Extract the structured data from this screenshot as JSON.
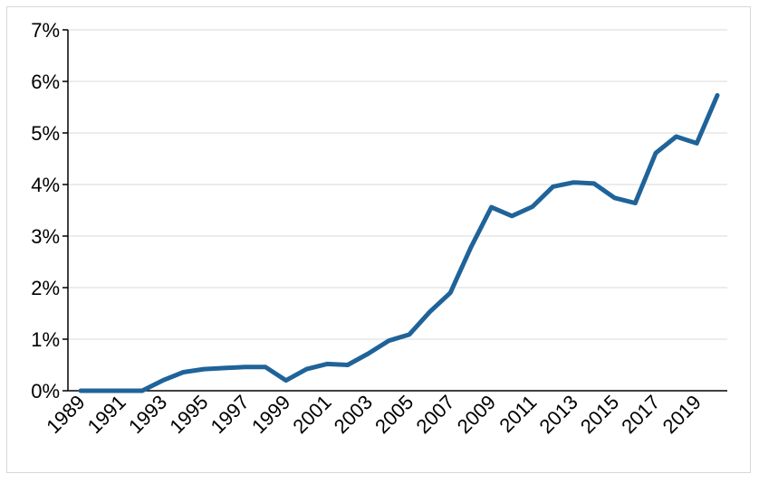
{
  "chart_data": {
    "type": "line",
    "title": "",
    "xlabel": "",
    "ylabel": "",
    "ylim": [
      0,
      7
    ],
    "grid": true,
    "legend": "none",
    "y_ticks": [
      "0%",
      "1%",
      "2%",
      "3%",
      "4%",
      "5%",
      "6%",
      "7%"
    ],
    "x_tick_labels": [
      "1989",
      "1991",
      "1993",
      "1995",
      "1997",
      "1999",
      "2001",
      "2003",
      "2005",
      "2007",
      "2009",
      "2011",
      "2013",
      "2015",
      "2017",
      "2019"
    ],
    "x": [
      1989,
      1990,
      1991,
      1992,
      1993,
      1994,
      1995,
      1996,
      1997,
      1998,
      1999,
      2000,
      2001,
      2002,
      2003,
      2004,
      2005,
      2006,
      2007,
      2008,
      2009,
      2010,
      2011,
      2012,
      2013,
      2014,
      2015,
      2016,
      2017,
      2018,
      2019,
      2020
    ],
    "series": [
      {
        "color": "#1F6399",
        "values": [
          0.0,
          0.0,
          0.0,
          0.0,
          0.2,
          0.36,
          0.42,
          0.44,
          0.46,
          0.46,
          0.2,
          0.42,
          0.52,
          0.5,
          0.72,
          0.97,
          1.09,
          1.53,
          1.9,
          2.78,
          3.56,
          3.39,
          3.57,
          3.96,
          4.04,
          4.02,
          3.74,
          3.64,
          4.61,
          4.93,
          4.8,
          5.73
        ]
      }
    ]
  }
}
